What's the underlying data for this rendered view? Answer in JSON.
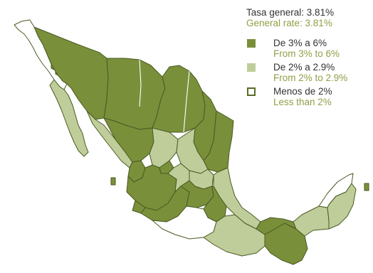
{
  "legend": {
    "general_rate_es": "Tasa general: 3.81%",
    "general_rate_en": "General rate: 3.81%",
    "items": [
      {
        "label_es": "De 3% a 6%",
        "label_en": "From 3% to 6%",
        "color": "#7a8f3a",
        "style": "filled"
      },
      {
        "label_es": "De 2% a 2.9%",
        "label_en": "From 2% to 2.9%",
        "color": "#bfcd9a",
        "style": "filled"
      },
      {
        "label_es": "Menos de 2%",
        "label_en": "Less than 2%",
        "color": "#ffffff",
        "border_color": "#5a6b27",
        "style": "outline"
      }
    ]
  },
  "colors": {
    "high": "#7a8f3a",
    "mid": "#bfcd9a",
    "low": "#ffffff",
    "stroke": "#4a5a22",
    "english_text": "#8ea047",
    "spanish_text": "#333333"
  }
}
